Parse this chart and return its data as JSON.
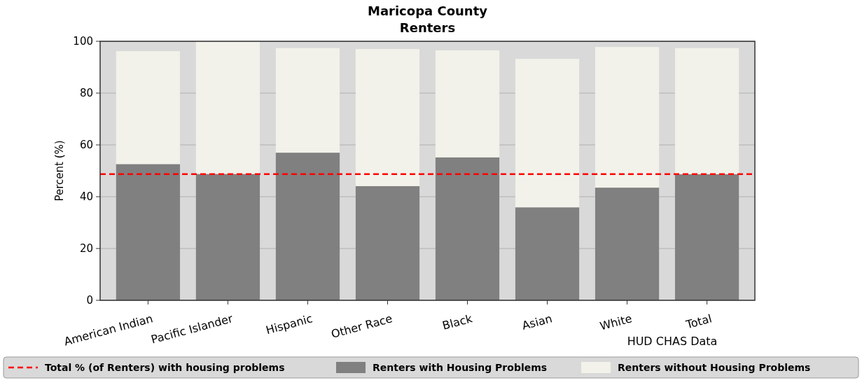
{
  "chart_data": {
    "type": "bar",
    "title": "Maricopa County\nRenters",
    "ylabel": "Percent (%)",
    "categories": [
      "American Indian",
      "Pacific Islander",
      "Hispanic",
      "Other Race",
      "Black",
      "Asian",
      "White",
      "Total"
    ],
    "series": [
      {
        "name": "Renters with Housing Problems",
        "color": "#808080",
        "values": [
          52.6,
          48.8,
          57.0,
          44.1,
          55.2,
          35.9,
          43.5,
          48.7
        ]
      },
      {
        "name": "Renters without Housing Problems",
        "color": "#f2f2ea",
        "values": [
          43.6,
          51.1,
          40.4,
          52.9,
          41.3,
          57.3,
          54.3,
          48.7
        ]
      }
    ],
    "stacked": true,
    "ylim": [
      0,
      100
    ],
    "yticks": [
      0,
      20,
      40,
      60,
      80,
      100
    ],
    "grid": "y",
    "ref_lines": [
      {
        "axis": "y",
        "value": 48.7,
        "label": "Total % (of Renters) with housing problems",
        "color": "#ff0000",
        "line_style": "dashed"
      }
    ],
    "annotations": [
      "HUD CHAS Data"
    ],
    "legend": "bottom"
  }
}
